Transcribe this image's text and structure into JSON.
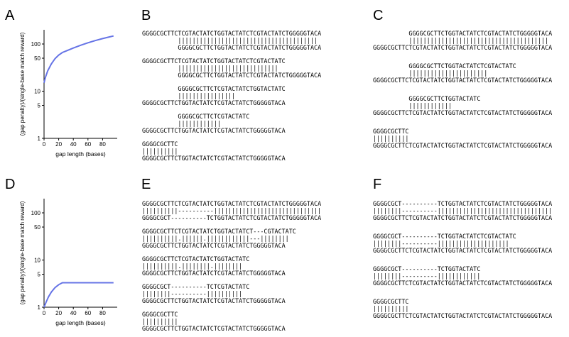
{
  "panel_labels": {
    "A": "A",
    "B": "B",
    "C": "C",
    "D": "D",
    "E": "E",
    "F": "F"
  },
  "colors": {
    "curve": "#6674e6",
    "axis": "#000000",
    "text": "#000000"
  },
  "chart_data": [
    {
      "type": "line",
      "panel": "A",
      "xlabel": "gap length (bases)",
      "ylabel": "(gap penalty)/(single-base match reward)",
      "yscale": "log",
      "xlim": [
        0,
        100
      ],
      "ylim": [
        1,
        200
      ],
      "xticks": [
        0,
        20,
        40,
        60,
        80
      ],
      "xtick_labels": [
        "0",
        "20",
        "40",
        "60",
        "80"
      ],
      "yticks": [
        1,
        5,
        10,
        50,
        100
      ],
      "ytick_labels": [
        "1",
        "5",
        "10",
        "50",
        "100"
      ],
      "series": [
        {
          "x": [
            0,
            2,
            5,
            10,
            15,
            20,
            25,
            30,
            40,
            50,
            60,
            70,
            80,
            90,
            95
          ],
          "y": [
            15,
            20,
            27,
            38,
            49,
            58,
            66,
            71,
            82,
            94,
            106,
            118,
            130,
            142,
            148
          ]
        }
      ]
    },
    {
      "type": "line",
      "panel": "D",
      "xlabel": "gap length (bases)",
      "ylabel": "(gap penalty)/(single-base match reward)",
      "yscale": "log",
      "xlim": [
        0,
        100
      ],
      "ylim": [
        1,
        200
      ],
      "xticks": [
        0,
        20,
        40,
        60,
        80
      ],
      "xtick_labels": [
        "0",
        "20",
        "40",
        "60",
        "80"
      ],
      "yticks": [
        1,
        5,
        10,
        50,
        100
      ],
      "ytick_labels": [
        "1",
        "5",
        "10",
        "50",
        "100"
      ],
      "series": [
        {
          "x": [
            0,
            3,
            6,
            10,
            15,
            20,
            25,
            30,
            40,
            60,
            80,
            95
          ],
          "y": [
            1,
            1.3,
            1.65,
            2.1,
            2.6,
            3.0,
            3.3,
            3.3,
            3.3,
            3.3,
            3.3,
            3.3
          ]
        }
      ]
    }
  ],
  "alignments": {
    "B": [
      [
        "GGGGCGCTTCTCGTACTATCTGGTACTATCTCGTACTATCTGGGGGTACA",
        "          |||||||||||||||||||||||||||||||||||||||",
        "          GGGGCGCTTCTGGTACTATCTCGTACTATCTGGGGGTACA"
      ],
      [
        "GGGGCGCTTCTCGTACTATCTGGTACTATCTCGTACTATC",
        "          ||||||||||||||||||||||||||||",
        "          GGGGCGCTTCTGGTACTATCTCGTACTATCTGGGGGTACA"
      ],
      [
        "          GGGGCGCTTCTCGTACTATCTGGTACTATC",
        "          ||||||||||||||||",
        "GGGGCGCTTCTGGTACTATCTCGTACTATCTGGGGGTACA"
      ],
      [
        "          GGGGCGCTTCTCGTACTATC",
        "          ||||||||||||",
        "GGGGCGCTTCTGGTACTATCTCGTACTATCTGGGGGTACA"
      ],
      [
        "GGGGCGCTTC",
        "||||||||||",
        "GGGGCGCTTCTGGTACTATCTCGTACTATCTGGGGGTACA"
      ]
    ],
    "C": [
      [
        "          GGGGCGCTTCTGGTACTATCTCGTACTATCTGGGGGTACA",
        "          |||||||||||||||||||||||||||||||||||||||",
        "GGGGCGCTTCTCGTACTATCTGGTACTATCTCGTACTATCTGGGGGTACA"
      ],
      [
        "          GGGGCGCTTCTGGTACTATCTCGTACTATC",
        "          ||||||||||||||||||||||",
        "GGGGCGCTTCTCGTACTATCTGGTACTATCTCGTACTATCTGGGGGTACA"
      ],
      [
        "          GGGGCGCTTCTGGTACTATC",
        "          ||||||||||||",
        "GGGGCGCTTCTCGTACTATCTGGTACTATCTCGTACTATCTGGGGGTACA"
      ],
      [
        "GGGGCGCTTC",
        "||||||||||",
        "GGGGCGCTTCTCGTACTATCTGGTACTATCTCGTACTATCTGGGGGTACA"
      ]
    ],
    "E": [
      [
        "GGGGCGCTTCTCGTACTATCTGGTACTATCTCGTACTATCTGGGGGTACA",
        "||||||||||----------||||||||||||||||||||||||||||||",
        "GGGGCGCT----------TCTGGTACTATCTCGTACTATCTGGGGGTACA"
      ],
      [
        "GGGGCGCTTCTCGTACTATCTGGTACTATCT---CGTACTATC",
        "||||||||||.||||||.||||||||||||---||||||||",
        "GGGGCGCTTCTGGTACTATCTCGTACTATCTGGGGGTACA"
      ],
      [
        "GGGGCGCTTCTCGTACTATCTGGTACTATC",
        "||||||||||.||||||||.||||||||",
        "GGGGCGCTTCTGGTACTATCTCGTACTATCTGGGGGTACA"
      ],
      [
        "GGGGCGCT----------TCTCGTACTATC",
        "||||||||----------||||||||||",
        "GGGGCGCTTCTGGTACTATCTCGTACTATCTGGGGGTACA"
      ],
      [
        "GGGGCGCTTC",
        "||||||||||",
        "GGGGCGCTTCTGGTACTATCTCGTACTATCTGGGGGTACA"
      ]
    ],
    "F": [
      [
        "GGGGCGCT----------TCTGGTACTATCTCGTACTATCTGGGGGTACA",
        "||||||||----------||||||||||||||||||||||||||||||||",
        "GGGGCGCTTCTCGTACTATCTGGTACTATCTCGTACTATCTGGGGGTACA"
      ],
      [
        "GGGGCGCT----------TCTGGTACTATCTCGTACTATC",
        "||||||||----------||||||||||||||||||||",
        "GGGGCGCTTCTCGTACTATCTGGTACTATCTCGTACTATCTGGGGGTACA"
      ],
      [
        "GGGGCGCT----------TCTGGTACTATC",
        "||||||||----------||||||||||||",
        "GGGGCGCTTCTCGTACTATCTGGTACTATCTCGTACTATCTGGGGGTACA"
      ],
      [
        "GGGGCGCTTC",
        "||||||||||",
        "GGGGCGCTTCTCGTACTATCTGGTACTATCTCGTACTATCTGGGGGTACA"
      ]
    ]
  }
}
